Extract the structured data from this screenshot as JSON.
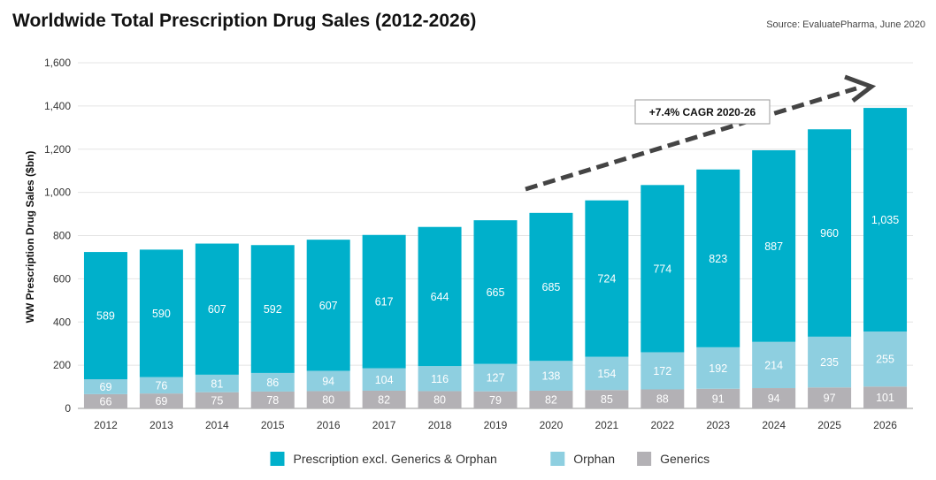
{
  "title": "Worldwide Total Prescription Drug Sales (2012-2026)",
  "source": "Source: EvaluatePharma, June 2020",
  "annotation": "+7.4% CAGR 2020-26",
  "chart_data": {
    "type": "bar",
    "stacked": true,
    "title": "Worldwide Total Prescription Drug Sales (2012-2026)",
    "ylabel": "WW Prescription Drug Sales ($bn)",
    "xlabel": "",
    "ylim": [
      0,
      1600
    ],
    "yticks": [
      0,
      200,
      400,
      600,
      800,
      1000,
      1200,
      1400,
      1600
    ],
    "ytick_labels": [
      "0",
      "200",
      "400",
      "600",
      "800",
      "1,000",
      "1,200",
      "1,400",
      "1,600"
    ],
    "categories": [
      "2012",
      "2013",
      "2014",
      "2015",
      "2016",
      "2017",
      "2018",
      "2019",
      "2020",
      "2021",
      "2022",
      "2023",
      "2024",
      "2025",
      "2026"
    ],
    "series": [
      {
        "name": "Generics",
        "color": "#b3b1b5",
        "values": [
          66,
          69,
          75,
          78,
          80,
          82,
          80,
          79,
          82,
          85,
          88,
          91,
          94,
          97,
          101
        ],
        "labels": [
          "66",
          "69",
          "75",
          "78",
          "80",
          "82",
          "80",
          "79",
          "82",
          "85",
          "88",
          "91",
          "94",
          "97",
          "101"
        ]
      },
      {
        "name": "Orphan",
        "color": "#8ecfe0",
        "values": [
          69,
          76,
          81,
          86,
          94,
          104,
          116,
          127,
          138,
          154,
          172,
          192,
          214,
          235,
          255
        ],
        "labels": [
          "69",
          "76",
          "81",
          "86",
          "94",
          "104",
          "116",
          "127",
          "138",
          "154",
          "172",
          "192",
          "214",
          "235",
          "255"
        ]
      },
      {
        "name": "Prescription excl. Generics & Orphan",
        "color": "#00b0cb",
        "values": [
          589,
          590,
          607,
          592,
          607,
          617,
          644,
          665,
          685,
          724,
          774,
          823,
          887,
          960,
          1035
        ],
        "labels": [
          "589",
          "590",
          "607",
          "592",
          "607",
          "617",
          "644",
          "665",
          "685",
          "724",
          "774",
          "823",
          "887",
          "960",
          "1,035"
        ]
      }
    ],
    "legend_order": [
      "Prescription excl. Generics & Orphan",
      "Orphan",
      "Generics"
    ],
    "legend_position": "bottom-center",
    "grid": true
  }
}
